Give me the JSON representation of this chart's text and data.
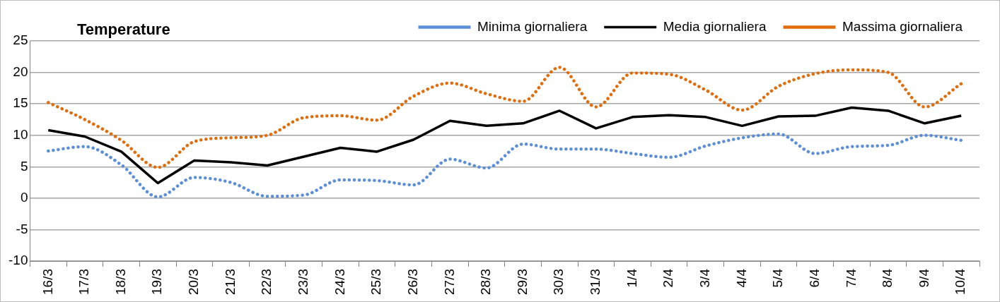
{
  "chart_data": {
    "type": "line",
    "title": "Temperature",
    "categories": [
      "16/3",
      "17/3",
      "18/3",
      "19/3",
      "20/3",
      "21/3",
      "22/3",
      "23/3",
      "24/3",
      "25/3",
      "26/3",
      "27/3",
      "28/3",
      "29/3",
      "30/3",
      "31/3",
      "1/4",
      "2/4",
      "3/4",
      "4/4",
      "5/4",
      "6/4",
      "7/4",
      "8/4",
      "9/4",
      "10/4"
    ],
    "series": [
      {
        "name": "Minima giornaliera",
        "color": "#5b8fd9",
        "line_style": "dotted",
        "values": [
          7.5,
          8.2,
          5.3,
          0.2,
          3.3,
          2.5,
          0.3,
          0.5,
          2.9,
          2.8,
          2.1,
          6.2,
          4.8,
          8.6,
          7.8,
          7.8,
          7.1,
          6.5,
          8.3,
          9.6,
          10.2,
          7.1,
          8.2,
          8.4,
          10,
          9.2
        ]
      },
      {
        "name": "Media giornaliera",
        "color": "#000000",
        "line_style": "solid",
        "values": [
          10.8,
          9.8,
          7.4,
          2.4,
          6,
          5.7,
          5.2,
          6.6,
          8,
          7.4,
          9.3,
          12.3,
          11.5,
          11.9,
          13.9,
          11.1,
          12.9,
          13.2,
          12.9,
          11.5,
          13,
          13.1,
          14.4,
          13.9,
          11.9,
          13.1
        ]
      },
      {
        "name": "Massima giornaliera",
        "color": "#e36c0a",
        "line_style": "dotted",
        "values": [
          15.2,
          12.5,
          9.2,
          4.9,
          9,
          9.6,
          10,
          12.8,
          13.1,
          12.4,
          16.2,
          18.3,
          16.6,
          15.4,
          20.8,
          14.5,
          19.9,
          19.7,
          17.2,
          14,
          17.8,
          19.8,
          20.4,
          20,
          14.5,
          18.2
        ]
      }
    ],
    "ylim": [
      -10,
      25
    ],
    "yticks": [
      -10,
      -5,
      0,
      5,
      10,
      15,
      20,
      25
    ],
    "grid": "y",
    "legend": "top right",
    "marker": "none"
  }
}
